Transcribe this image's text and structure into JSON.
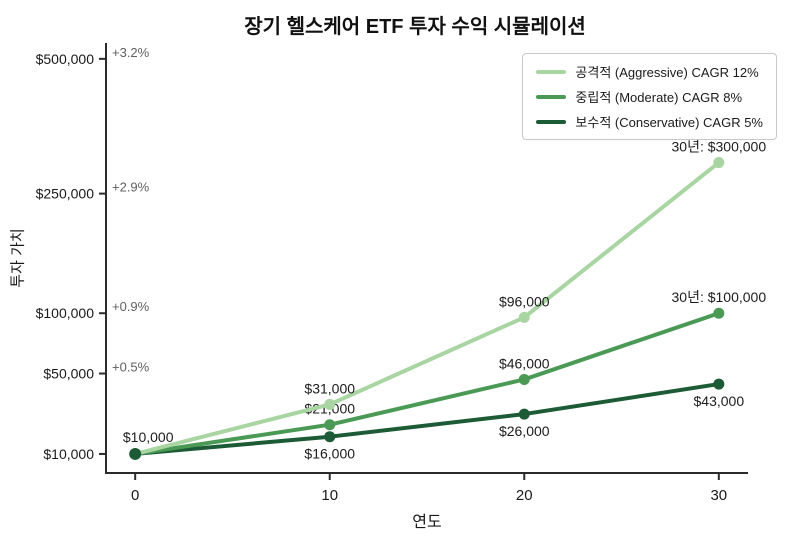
{
  "title": "장기 헬스케어 ETF 투자 수익 시뮬레이션",
  "chart_data": {
    "type": "line",
    "title": "장기 헬스케어 ETF 투자 수익 시뮬레이션",
    "xlabel": "연도",
    "ylabel": "투자 가치",
    "x": [
      0,
      10,
      20,
      30
    ],
    "xlim": [
      -1.5,
      31.5
    ],
    "ylim": [
      5000,
      535000
    ],
    "yscale": "sqrt",
    "grid": false,
    "legend_position": "top-right",
    "xticks": [
      {
        "value": 0,
        "label": "0"
      },
      {
        "value": 10,
        "label": "10"
      },
      {
        "value": 20,
        "label": "20"
      },
      {
        "value": 30,
        "label": "30"
      }
    ],
    "yticks": [
      {
        "value": 10000,
        "label": "$10,000"
      },
      {
        "value": 50000,
        "label": "$50,000"
      },
      {
        "value": 100000,
        "label": "$100,000"
      },
      {
        "value": 250000,
        "label": "$250,000"
      },
      {
        "value": 500000,
        "label": "$500,000"
      }
    ],
    "series": [
      {
        "name": "공격적 (Aggressive) CAGR 12%",
        "color": "#a8d5a2",
        "values": [
          10000,
          31000,
          96000,
          300000
        ],
        "labels": [
          {
            "text": ""
          },
          {
            "text": "$31,000",
            "placement": "above"
          },
          {
            "text": "$96,000",
            "placement": "above"
          },
          {
            "text": "30년: $300,000",
            "placement": "above"
          }
        ]
      },
      {
        "name": "중립적 (Moderate) CAGR 8%",
        "color": "#4a9a55",
        "values": [
          10000,
          21000,
          46000,
          100000
        ],
        "labels": [
          {
            "text": ""
          },
          {
            "text": "$21,000",
            "placement": "above"
          },
          {
            "text": "$46,000",
            "placement": "above"
          },
          {
            "text": "30년: $100,000",
            "placement": "above"
          }
        ]
      },
      {
        "name": "보수적 (Conservative) CAGR 5%",
        "color": "#1c5b35",
        "values": [
          10000,
          16000,
          26000,
          43000
        ],
        "labels": [
          {
            "text": ""
          },
          {
            "text": "$16,000",
            "placement": "below"
          },
          {
            "text": "$26,000",
            "placement": "below"
          },
          {
            "text": "$43,000",
            "placement": "below"
          }
        ]
      }
    ],
    "start_label": {
      "text": "$10,000",
      "x": 0,
      "y": 10000
    },
    "axis_annotations": [
      {
        "text": "+3.2%",
        "at_value": 500000
      },
      {
        "text": "+2.9%",
        "at_value": 250000
      },
      {
        "text": "+0.9%",
        "at_value": 100000
      },
      {
        "text": "+0.5%",
        "at_value": 50000
      }
    ],
    "colors": {
      "axis": "#2b2b2b",
      "tick_label": "#1a1a1a",
      "annotation": "#606060",
      "background": "#ffffff"
    }
  }
}
